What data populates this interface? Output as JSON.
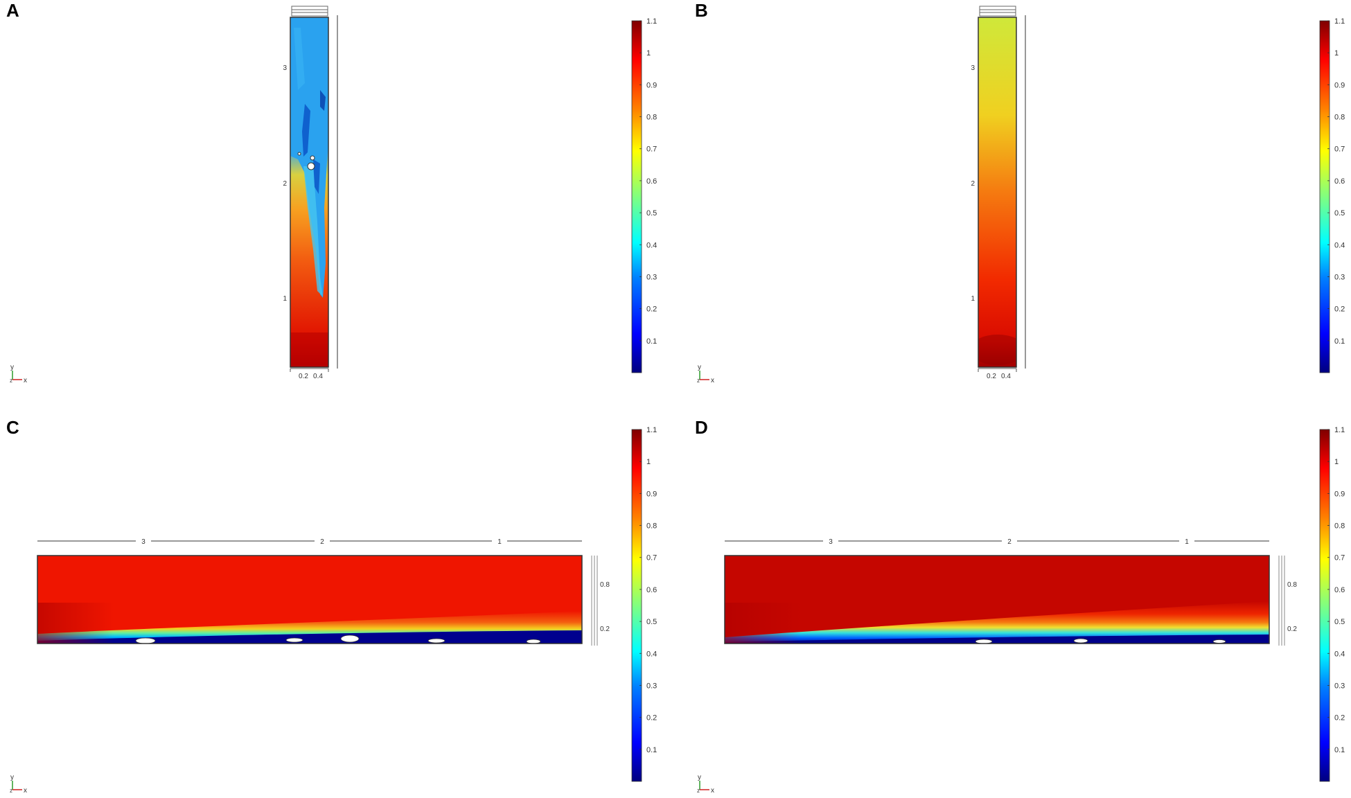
{
  "panels": [
    {
      "label": "A"
    },
    {
      "label": "B"
    },
    {
      "label": "C"
    },
    {
      "label": "D"
    }
  ],
  "colorbar_ticks": [
    "1.1",
    "1",
    "0.9",
    "0.8",
    "0.7",
    "0.6",
    "0.5",
    "0.4",
    "0.3",
    "0.2",
    "0.1"
  ],
  "colorbar_range": [
    0,
    1.1
  ],
  "colormap": [
    "#00007f",
    "#0000ff",
    "#0080ff",
    "#00ffff",
    "#80ff80",
    "#ffff00",
    "#ff8000",
    "#ff0000",
    "#7f0000"
  ],
  "vertical_axis_ticks": [
    "3",
    "2",
    "1"
  ],
  "vertical_x_ticks": [
    "0.2",
    "0.4"
  ],
  "horizontal_axis_ticks": [
    "3",
    "2",
    "1"
  ],
  "horizontal_side_ticks": [
    "0.8",
    "0.2"
  ],
  "axis_triad": {
    "y": "y",
    "x": "x",
    "z": "z"
  }
}
